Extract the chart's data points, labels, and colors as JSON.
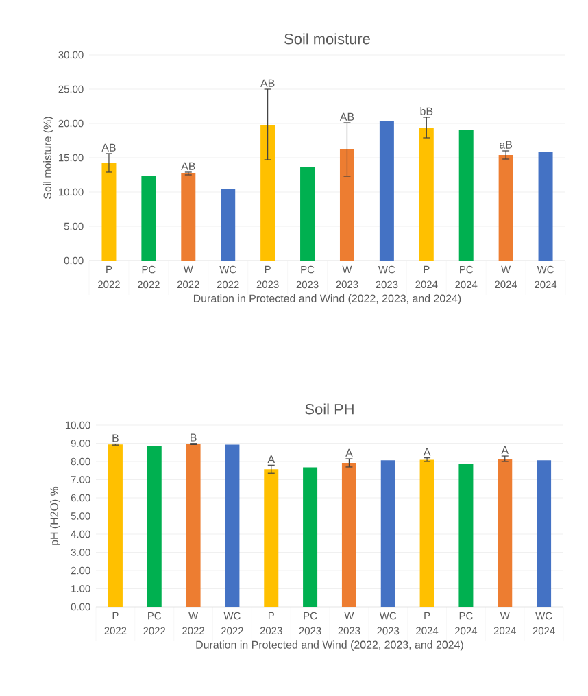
{
  "chart_data": [
    {
      "type": "bar",
      "title": "Soil moisture",
      "xlabel": "Duration in Protected and Wind (2022, 2023, and 2024)",
      "ylabel": "Soil moisture (%)",
      "categories": [
        "P 2022",
        "PC 2022",
        "W 2022",
        "WC 2022",
        "P 2023",
        "PC 2023",
        "W 2023",
        "WC 2023",
        "P 2024",
        "PC 2024",
        "W 2024",
        "WC 2024"
      ],
      "values": [
        14.2,
        12.3,
        12.7,
        10.5,
        19.8,
        13.7,
        16.2,
        20.3,
        19.4,
        19.1,
        15.4,
        15.8
      ],
      "colors": [
        "#ffc000",
        "#00b050",
        "#ed7d31",
        "#4472c4",
        "#ffc000",
        "#00b050",
        "#ed7d31",
        "#4472c4",
        "#ffc000",
        "#00b050",
        "#ed7d31",
        "#4472c4"
      ],
      "errors": [
        [
          12.9,
          15.6
        ],
        null,
        [
          12.5,
          12.9
        ],
        null,
        [
          14.7,
          25.0
        ],
        null,
        [
          12.3,
          20.1
        ],
        null,
        [
          17.9,
          20.9
        ],
        null,
        [
          14.8,
          16.0
        ],
        null
      ],
      "ylim": [
        0,
        30
      ],
      "yticks": [
        {
          "value": 0,
          "label": "0.00"
        },
        {
          "value": 5,
          "label": "5.00"
        },
        {
          "value": 10,
          "label": "10.00"
        },
        {
          "value": 15,
          "label": "15.00"
        },
        {
          "value": 20,
          "label": "20.00"
        },
        {
          "value": 25,
          "label": "25.00"
        },
        {
          "value": 30,
          "label": "30.00"
        }
      ],
      "grid": "y",
      "annotations": [
        {
          "text": "AB",
          "x": "P 2022",
          "y": 14.2
        },
        {
          "text": "AB",
          "x": "W 2022",
          "y": 12.7
        },
        {
          "text": "AB",
          "x": "P 2023",
          "y": 25.0
        },
        {
          "text": "AB",
          "x": "W 2023",
          "y": 16.2
        },
        {
          "text": "bB",
          "x": "P 2024",
          "y": 19.4
        },
        {
          "text": "aB",
          "x": "W 2024",
          "y": 15.4
        }
      ]
    },
    {
      "type": "bar",
      "title": "Soil PH",
      "xlabel": "Duration in Protected and Wind (2022, 2023, and 2024)",
      "ylabel": "pH (H2O) %",
      "categories": [
        "P 2022",
        "PC 2022",
        "W 2022",
        "WC 2022",
        "P 2023",
        "PC 2023",
        "W 2023",
        "WC 2023",
        "P 2024",
        "PC 2024",
        "W 2024",
        "WC 2024"
      ],
      "values": [
        8.93,
        8.85,
        8.96,
        8.92,
        7.58,
        7.68,
        7.92,
        8.07,
        8.09,
        7.88,
        8.15,
        8.07
      ],
      "colors": [
        "#ffc000",
        "#00b050",
        "#ed7d31",
        "#4472c4",
        "#ffc000",
        "#00b050",
        "#ed7d31",
        "#4472c4",
        "#ffc000",
        "#00b050",
        "#ed7d31",
        "#4472c4"
      ],
      "errors": [
        [
          8.9,
          8.96
        ],
        null,
        [
          8.93,
          8.99
        ],
        null,
        [
          7.35,
          7.8
        ],
        null,
        [
          7.7,
          8.15
        ],
        null,
        [
          8.0,
          8.2
        ],
        null,
        [
          8.0,
          8.3
        ],
        null
      ],
      "ylim": [
        0,
        10
      ],
      "yticks": [
        {
          "value": 0,
          "label": "0.00"
        },
        {
          "value": 1,
          "label": "1.00"
        },
        {
          "value": 2,
          "label": "2.00"
        },
        {
          "value": 3,
          "label": "3.00"
        },
        {
          "value": 4,
          "label": "4.00"
        },
        {
          "value": 5,
          "label": "5.00"
        },
        {
          "value": 6,
          "label": "6.00"
        },
        {
          "value": 7,
          "label": "7.00"
        },
        {
          "value": 8,
          "label": "8.00"
        },
        {
          "value": 9,
          "label": "9.00"
        },
        {
          "value": 10,
          "label": "10.00"
        }
      ],
      "grid": "y",
      "annotations": [
        {
          "text": "B",
          "x": "P 2022",
          "y": 8.93
        },
        {
          "text": "B",
          "x": "W 2022",
          "y": 8.96
        },
        {
          "text": "A",
          "x": "P 2023",
          "y": 7.58
        },
        {
          "text": "A",
          "x": "W 2023",
          "y": 7.92
        },
        {
          "text": "A",
          "x": "P 2024",
          "y": 8.09
        },
        {
          "text": "A",
          "x": "W 2024",
          "y": 8.15
        }
      ]
    }
  ]
}
